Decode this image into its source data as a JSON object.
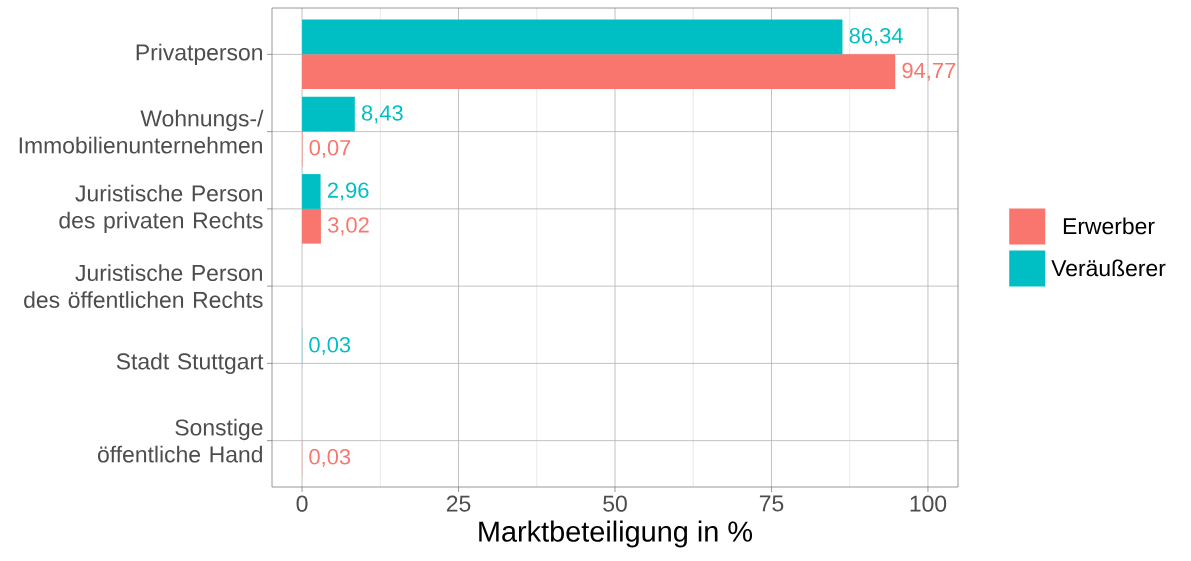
{
  "chart_data": {
    "type": "bar",
    "orientation": "horizontal",
    "categories": [
      "Privatperson",
      "Wohnungs-/\nImmobilienunternehmen",
      "Juristische Person\ndes privaten Rechts",
      "Juristische Person\ndes öffentlichen Rechts",
      "Stadt Stuttgart",
      "Sonstige\nöffentliche Hand"
    ],
    "series": [
      {
        "name": "Erwerber",
        "color": "#f8766d",
        "values": [
          94.77,
          0.07,
          3.02,
          null,
          null,
          0.03
        ],
        "value_labels": [
          "94,77",
          "0,07",
          "3,02",
          null,
          null,
          "0,03"
        ]
      },
      {
        "name": "Veräußerer",
        "color": "#00bfc4",
        "values": [
          86.34,
          8.43,
          2.96,
          null,
          0.03,
          null
        ],
        "value_labels": [
          "86,34",
          "8,43",
          "2,96",
          null,
          "0,03",
          null
        ]
      }
    ],
    "xlabel": "Marktbeteiligung in %",
    "xlim": [
      -4.8,
      104.8
    ],
    "xticks": [
      0,
      25,
      50,
      75,
      100
    ],
    "grid": true,
    "legend": "right"
  }
}
